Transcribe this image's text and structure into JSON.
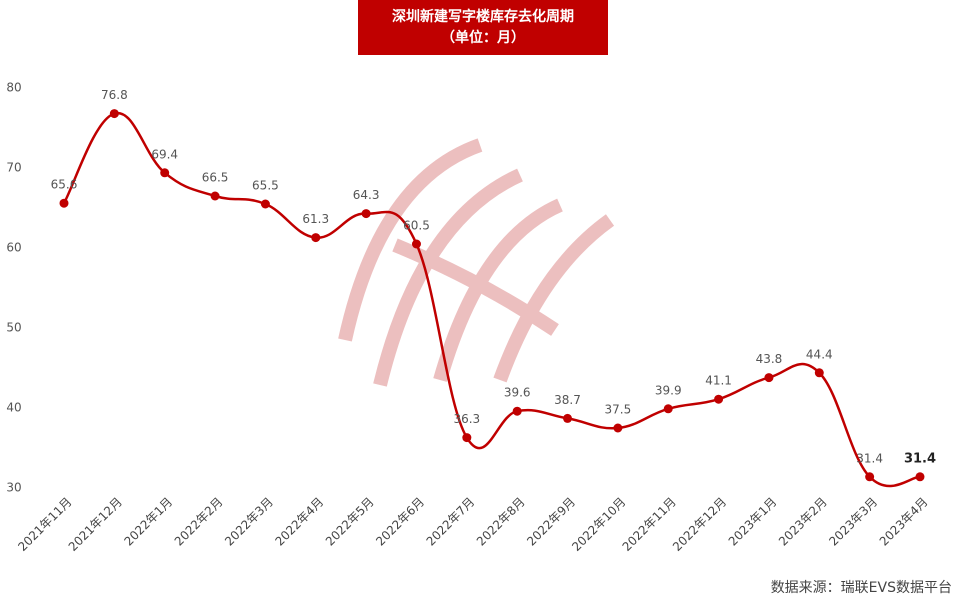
{
  "chart_data": {
    "type": "line",
    "title": "深圳新建写字楼库存去化周期",
    "subtitle": "（单位：月）",
    "categories": [
      "2021年11月",
      "2021年12月",
      "2022年1月",
      "2022年2月",
      "2022年3月",
      "2022年4月",
      "2022年5月",
      "2022年6月",
      "2022年7月",
      "2022年8月",
      "2022年9月",
      "2022年10月",
      "2022年11月",
      "2022年12月",
      "2023年1月",
      "2023年2月",
      "2023年3月",
      "2023年4月"
    ],
    "series": [
      {
        "name": "库存去化周期",
        "color": "#c00000",
        "values": [
          65.6,
          76.8,
          69.4,
          66.5,
          65.5,
          61.3,
          64.3,
          60.5,
          36.3,
          39.6,
          38.7,
          37.5,
          39.9,
          41.1,
          43.8,
          44.4,
          31.4,
          31.4
        ]
      }
    ],
    "ylim": [
      30,
      80
    ],
    "yticks": [
      30,
      40,
      50,
      60,
      70,
      80
    ],
    "grid": false,
    "source": "数据来源：瑞联EVS数据平台"
  }
}
